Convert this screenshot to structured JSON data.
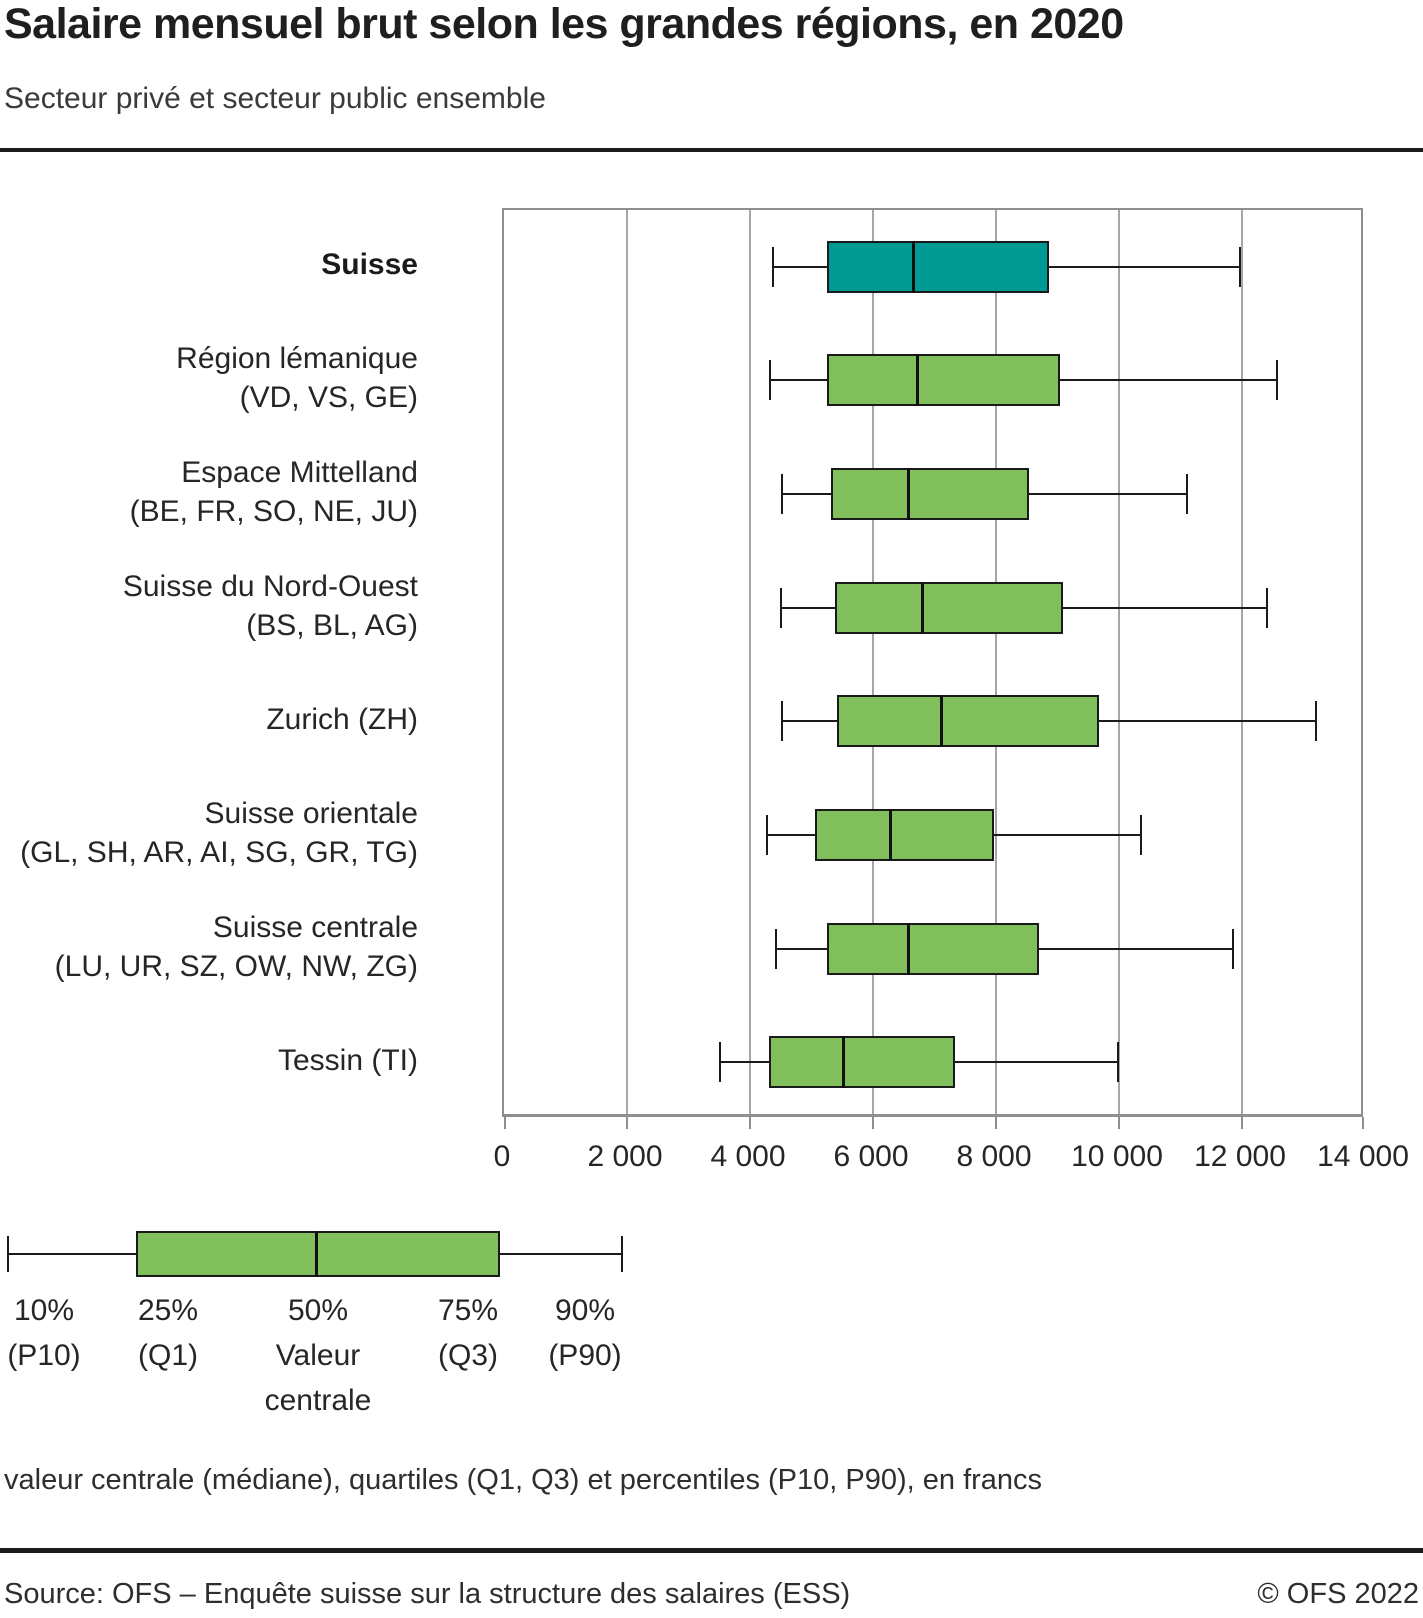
{
  "header": {
    "title": "Salaire mensuel brut selon les grandes régions, en 2020",
    "subtitle": "Secteur privé et secteur public ensemble"
  },
  "chart_data": {
    "type": "boxplot",
    "orientation": "horizontal",
    "value_unit": "francs",
    "xlim": [
      0,
      14000
    ],
    "x_ticks": [
      0,
      2000,
      4000,
      6000,
      8000,
      10000,
      12000,
      14000
    ],
    "x_tick_labels": [
      "0",
      "2 000",
      "4 000",
      "6 000",
      "8 000",
      "10 000",
      "12 000",
      "14 000"
    ],
    "grid": true,
    "colors": {
      "suisse": "#009a93",
      "regions": "#81bf5c",
      "stroke": "#1a1a1a"
    },
    "series": [
      {
        "label": "Suisse",
        "sublabel": "",
        "bold": true,
        "color": "#009a93",
        "p10": 4380,
        "q1": 5250,
        "median": 6665,
        "q3": 8860,
        "p90": 11965
      },
      {
        "label": "Région lémanique",
        "sublabel": "(VD, VS, GE)",
        "bold": false,
        "color": "#81bf5c",
        "p10": 4330,
        "q1": 5250,
        "median": 6730,
        "q3": 9040,
        "p90": 12570
      },
      {
        "label": "Espace Mittelland",
        "sublabel": "(BE, FR, SO, NE, JU)",
        "bold": false,
        "color": "#81bf5c",
        "p10": 4520,
        "q1": 5320,
        "median": 6570,
        "q3": 8530,
        "p90": 11110
      },
      {
        "label": "Suisse du Nord-Ouest",
        "sublabel": "(BS, BL, AG)",
        "bold": false,
        "color": "#81bf5c",
        "p10": 4500,
        "q1": 5380,
        "median": 6800,
        "q3": 9090,
        "p90": 12410
      },
      {
        "label": "Zurich (ZH)",
        "sublabel": "",
        "bold": false,
        "color": "#81bf5c",
        "p10": 4520,
        "q1": 5410,
        "median": 7110,
        "q3": 9680,
        "p90": 13200
      },
      {
        "label": "Suisse orientale",
        "sublabel": "(GL, SH, AR, AI, SG, GR, TG)",
        "bold": false,
        "color": "#81bf5c",
        "p10": 4280,
        "q1": 5050,
        "median": 6280,
        "q3": 7960,
        "p90": 10360
      },
      {
        "label": "Suisse centrale",
        "sublabel": "(LU, UR, SZ, OW, NW, ZG)",
        "bold": false,
        "color": "#81bf5c",
        "p10": 4420,
        "q1": 5250,
        "median": 6570,
        "q3": 8700,
        "p90": 11860
      },
      {
        "label": "Tessin (TI)",
        "sublabel": "",
        "bold": false,
        "color": "#81bf5c",
        "p10": 3520,
        "q1": 4310,
        "median": 5520,
        "q3": 7340,
        "p90": 9980
      }
    ]
  },
  "legend": {
    "items": [
      {
        "lines": [
          "10%",
          "(P10)"
        ]
      },
      {
        "lines": [
          "25%",
          "(Q1)"
        ]
      },
      {
        "lines": [
          "50%",
          "Valeur",
          "centrale"
        ]
      },
      {
        "lines": [
          "75%",
          "(Q3)"
        ]
      },
      {
        "lines": [
          "90%",
          "(P90)"
        ]
      }
    ]
  },
  "note": "valeur centrale (médiane), quartiles (Q1, Q3) et percentiles (P10, P90), en francs",
  "footer": {
    "source": "Source: OFS – Enquête suisse sur la structure des salaires (ESS)",
    "copyright": "© OFS 2022"
  }
}
